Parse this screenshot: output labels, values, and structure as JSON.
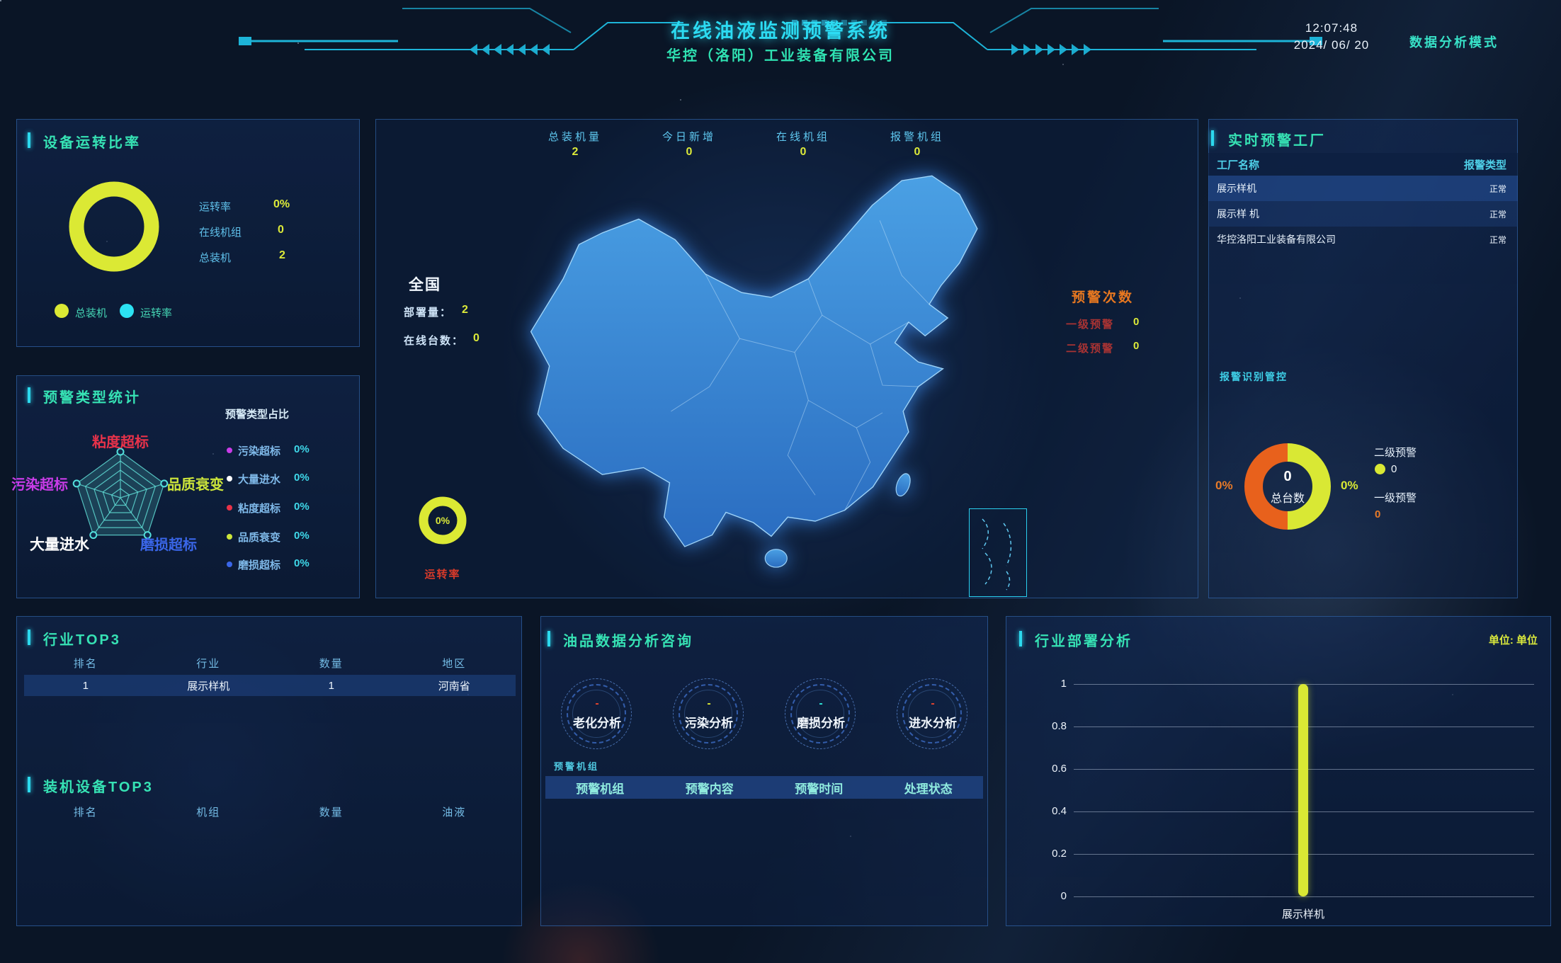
{
  "header": {
    "title": "在线油液监测预警系统",
    "subtitle": "华控（洛阳）工业装备有限公司",
    "time": "12:07:48",
    "date": "2024/ 06/ 20",
    "mode_label": "数据分析模式"
  },
  "panels": {
    "device_ratio": {
      "title": "设备运转比率",
      "stats": [
        {
          "label": "运转率",
          "value": "0%"
        },
        {
          "label": "在线机组",
          "value": "0"
        },
        {
          "label": "总装机",
          "value": "2"
        }
      ],
      "legend": [
        {
          "label": "总装机",
          "color": "#dbe934"
        },
        {
          "label": "运转率",
          "color": "#2ce2f2"
        }
      ],
      "chart_data": {
        "type": "pie",
        "series": [
          {
            "name": "总装机",
            "value": 2,
            "color": "#dbe934"
          },
          {
            "name": "运转率",
            "value": 0,
            "color": "#2ce2f2"
          }
        ]
      }
    },
    "warning_types": {
      "title": "预警类型统计",
      "list_title": "预警类型占比",
      "radar_labels": [
        {
          "label": "粘度超标",
          "color": "#e8324a"
        },
        {
          "label": "品质衰变",
          "color": "#cde63a"
        },
        {
          "label": "磨损超标",
          "color": "#3a66e8"
        },
        {
          "label": "大量进水",
          "color": "#ffffff"
        },
        {
          "label": "污染超标",
          "color": "#c93ce8"
        }
      ],
      "items": [
        {
          "label": "污染超标",
          "value": "0%",
          "color": "#c93ce8"
        },
        {
          "label": "大量进水",
          "value": "0%",
          "color": "#ffffff"
        },
        {
          "label": "粘度超标",
          "value": "0%",
          "color": "#e83248"
        },
        {
          "label": "品质衰变",
          "value": "0%",
          "color": "#cde63a"
        },
        {
          "label": "磨损超标",
          "value": "0%",
          "color": "#3a66e8"
        }
      ],
      "chart_data": {
        "type": "radar",
        "axes": [
          "粘度超标",
          "品质衰变",
          "磨损超标",
          "大量进水",
          "污染超标"
        ],
        "values": [
          0,
          0,
          0,
          0,
          0
        ],
        "levels": 5
      }
    },
    "map": {
      "top_stats": [
        {
          "label": "总装机量",
          "value": "2"
        },
        {
          "label": "今日新增",
          "value": "0"
        },
        {
          "label": "在线机组",
          "value": "0"
        },
        {
          "label": "报警机组",
          "value": "0"
        }
      ],
      "region": {
        "name": "全国",
        "rows": [
          {
            "label": "部署量：",
            "value": "2"
          },
          {
            "label": "在线台数：",
            "value": "0"
          }
        ]
      },
      "gauge": {
        "value": "0%",
        "label": "运转率"
      },
      "warnings": {
        "title": "预警次数",
        "items": [
          {
            "label": "一级预警",
            "value": "0"
          },
          {
            "label": "二级预警",
            "value": "0"
          }
        ]
      }
    },
    "realtime": {
      "title": "实时预警工厂",
      "columns": [
        "工厂名称",
        "报警类型"
      ],
      "rows": [
        {
          "factory": "展示样机",
          "status": "正常"
        },
        {
          "factory": "展示样 机",
          "status": "正常"
        },
        {
          "factory": "华控洛阳工业装备有限公司",
          "status": "正常"
        }
      ],
      "control_label": "报警识别管控",
      "donut": {
        "center_value": "0",
        "center_label": "总台数",
        "left_pct": "0%",
        "right_pct": "0%",
        "legend": [
          {
            "label": "二级预警",
            "value": "0",
            "color": "#d9e834"
          },
          {
            "label": "一级预警",
            "value": "0",
            "color": "#e87a28"
          }
        ],
        "chart_data": {
          "type": "pie",
          "series": [
            {
              "name": "二级预警",
              "value": 0,
              "pct": "0%",
              "color": "#d9e834"
            },
            {
              "name": "一级预警",
              "value": 0,
              "pct": "0%",
              "color": "#e8611c"
            }
          ]
        }
      }
    },
    "industry_top3": {
      "title": "行业TOP3",
      "columns": [
        "排名",
        "行业",
        "数量",
        "地区"
      ],
      "rows": [
        [
          "1",
          "展示样机",
          "1",
          "河南省"
        ]
      ]
    },
    "device_top3": {
      "title": "装机设备TOP3",
      "columns": [
        "排名",
        "机组",
        "数量",
        "油液"
      ],
      "rows": []
    },
    "oil": {
      "title": "油品数据分析咨询",
      "gauges": [
        {
          "label": "老化分析",
          "value": "-",
          "color": "#e8452e"
        },
        {
          "label": "污染分析",
          "value": "-",
          "color": "#d9e834"
        },
        {
          "label": "磨损分析",
          "value": "-",
          "color": "#2ee6d8"
        },
        {
          "label": "进水分析",
          "value": "-",
          "color": "#e8452e"
        }
      ],
      "table_label": "预警机组",
      "columns": [
        "预警机组",
        "预警内容",
        "预警时间",
        "处理状态"
      ]
    },
    "deploy": {
      "title": "行业部署分析",
      "unit": "单位: 单位",
      "chart": {
        "type": "bar",
        "categories": [
          "展示样机"
        ],
        "values": [
          1
        ],
        "yticks": [
          "1",
          "0.8",
          "0.6",
          "0.4",
          "0.2",
          "0"
        ],
        "ymax": 1,
        "bar_color": "#d9e834",
        "grid": true
      }
    }
  }
}
